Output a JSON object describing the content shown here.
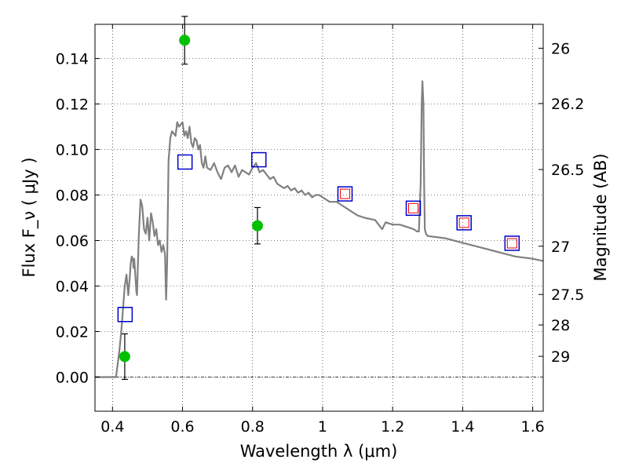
{
  "chart_data": {
    "type": "scatter",
    "xlabel": "Wavelength  λ (μm)",
    "ylabel": "Flux  F_ν  ( μJy )",
    "ylabel_right": "Magnitude (AB)",
    "xlim": [
      0.35,
      1.63
    ],
    "ylim": [
      -0.015,
      0.155
    ],
    "xticks": [
      0.4,
      0.6,
      0.8,
      1.0,
      1.2,
      1.4,
      1.6
    ],
    "xtick_labels": [
      "0.4",
      "0.6",
      "0.8",
      "1",
      "1.2",
      "1.4",
      "1.6"
    ],
    "yticks": [
      0.0,
      0.02,
      0.04,
      0.06,
      0.08,
      0.1,
      0.12,
      0.14
    ],
    "ytick_labels": [
      "0.00",
      "0.02",
      "0.04",
      "0.06",
      "0.08",
      "0.10",
      "0.12",
      "0.14"
    ],
    "right_ticks": [
      {
        "label": "26",
        "flux": 0.1445
      },
      {
        "label": "26.2",
        "flux": 0.1202
      },
      {
        "label": "26.5",
        "flux": 0.0912
      },
      {
        "label": "27",
        "flux": 0.0575
      },
      {
        "label": "27.5",
        "flux": 0.0363
      },
      {
        "label": "28",
        "flux": 0.0229
      },
      {
        "label": "29",
        "flux": 0.0091
      }
    ],
    "grid": true,
    "zero_line": true,
    "colors": {
      "model": "#808080",
      "observed": "#00c000",
      "model_phot": "#0000cc",
      "model_phot_inner": "#ff0000",
      "errorbar": "#000000"
    },
    "series": [
      {
        "kind": "line",
        "x": [
          0.35,
          0.41,
          0.415,
          0.42,
          0.425,
          0.43,
          0.435,
          0.44,
          0.445,
          0.45,
          0.452,
          0.455,
          0.458,
          0.46,
          0.462,
          0.465,
          0.468,
          0.47,
          0.475,
          0.48,
          0.485,
          0.49,
          0.495,
          0.5,
          0.505,
          0.51,
          0.515,
          0.52,
          0.525,
          0.53,
          0.535,
          0.54,
          0.545,
          0.55,
          0.553,
          0.556,
          0.56,
          0.565,
          0.57,
          0.58,
          0.585,
          0.59,
          0.6,
          0.605,
          0.61,
          0.615,
          0.62,
          0.625,
          0.63,
          0.635,
          0.64,
          0.645,
          0.65,
          0.655,
          0.66,
          0.665,
          0.67,
          0.68,
          0.69,
          0.7,
          0.71,
          0.72,
          0.73,
          0.74,
          0.75,
          0.76,
          0.77,
          0.78,
          0.79,
          0.8,
          0.81,
          0.82,
          0.83,
          0.84,
          0.85,
          0.86,
          0.87,
          0.88,
          0.89,
          0.9,
          0.91,
          0.92,
          0.93,
          0.94,
          0.95,
          0.96,
          0.97,
          0.98,
          0.99,
          1.0,
          1.02,
          1.04,
          1.06,
          1.08,
          1.1,
          1.12,
          1.15,
          1.17,
          1.18,
          1.2,
          1.22,
          1.24,
          1.26,
          1.27,
          1.275,
          1.28,
          1.283,
          1.285,
          1.288,
          1.29,
          1.292,
          1.295,
          1.3,
          1.35,
          1.4,
          1.45,
          1.5,
          1.55,
          1.6,
          1.63
        ],
        "y": [
          0.0,
          0.0,
          0.006,
          0.012,
          0.02,
          0.03,
          0.04,
          0.045,
          0.036,
          0.045,
          0.05,
          0.053,
          0.052,
          0.048,
          0.052,
          0.045,
          0.038,
          0.036,
          0.062,
          0.078,
          0.075,
          0.065,
          0.063,
          0.07,
          0.06,
          0.072,
          0.068,
          0.062,
          0.065,
          0.058,
          0.06,
          0.055,
          0.058,
          0.054,
          0.034,
          0.05,
          0.095,
          0.105,
          0.108,
          0.106,
          0.112,
          0.11,
          0.112,
          0.106,
          0.108,
          0.105,
          0.11,
          0.103,
          0.101,
          0.105,
          0.104,
          0.1,
          0.102,
          0.094,
          0.092,
          0.097,
          0.092,
          0.091,
          0.094,
          0.09,
          0.087,
          0.092,
          0.093,
          0.09,
          0.093,
          0.088,
          0.091,
          0.09,
          0.089,
          0.092,
          0.094,
          0.09,
          0.091,
          0.089,
          0.087,
          0.088,
          0.085,
          0.084,
          0.083,
          0.084,
          0.082,
          0.083,
          0.081,
          0.082,
          0.08,
          0.081,
          0.079,
          0.08,
          0.08,
          0.079,
          0.077,
          0.077,
          0.075,
          0.073,
          0.071,
          0.07,
          0.069,
          0.065,
          0.068,
          0.067,
          0.067,
          0.066,
          0.065,
          0.064,
          0.064,
          0.085,
          0.12,
          0.13,
          0.12,
          0.085,
          0.065,
          0.063,
          0.062,
          0.061,
          0.059,
          0.057,
          0.055,
          0.053,
          0.052,
          0.051
        ]
      },
      {
        "kind": "model_photometry",
        "x": [
          0.436,
          0.607,
          0.818,
          1.064,
          1.259,
          1.404,
          1.541
        ],
        "y": [
          0.0275,
          0.0945,
          0.0955,
          0.0805,
          0.0742,
          0.0678,
          0.0588
        ],
        "inner_marker": [
          false,
          false,
          false,
          true,
          true,
          true,
          true
        ]
      },
      {
        "kind": "observed",
        "x": [
          0.435,
          0.606,
          0.814
        ],
        "y": [
          0.009,
          0.148,
          0.0665
        ],
        "yerr": [
          0.01,
          0.0105,
          0.008
        ]
      }
    ]
  }
}
